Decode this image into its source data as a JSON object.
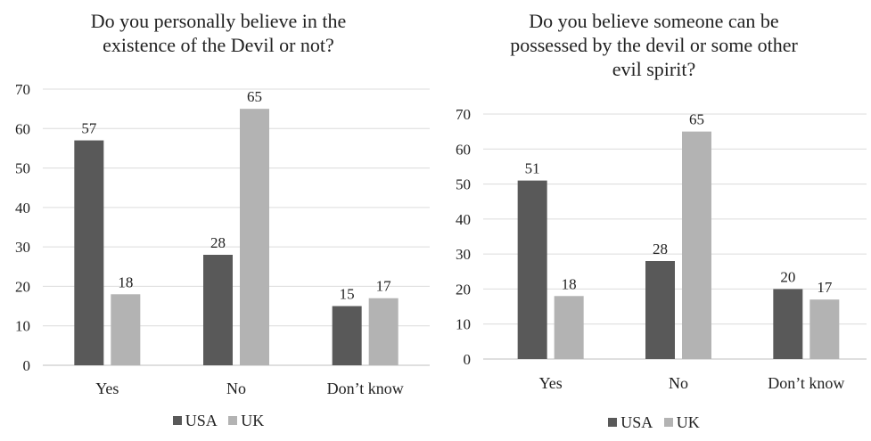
{
  "chart_data": [
    {
      "type": "bar",
      "title_lines": [
        "Do you personally believe in the",
        "existence of the Devil or not?"
      ],
      "categories": [
        "Yes",
        "No",
        "Don’t know"
      ],
      "series": [
        {
          "name": "USA",
          "values": [
            57,
            28,
            15
          ]
        },
        {
          "name": "UK",
          "values": [
            18,
            65,
            17
          ]
        }
      ],
      "yticks": [
        "0",
        "10",
        "20",
        "30",
        "40",
        "50",
        "60",
        "70"
      ],
      "ylim": [
        0,
        70
      ],
      "grid": true,
      "legend": "bottom",
      "colors": {
        "USA": "#595959",
        "UK": "#b3b3b3"
      }
    },
    {
      "type": "bar",
      "title_lines": [
        "Do you believe someone can be",
        "possessed by the devil or some other",
        "evil spirit?"
      ],
      "categories": [
        "Yes",
        "No",
        "Don’t know"
      ],
      "series": [
        {
          "name": "USA",
          "values": [
            51,
            28,
            20
          ]
        },
        {
          "name": "UK",
          "values": [
            18,
            65,
            17
          ]
        }
      ],
      "yticks": [
        "0",
        "10",
        "20",
        "30",
        "40",
        "50",
        "60",
        "70"
      ],
      "ylim": [
        0,
        70
      ],
      "grid": true,
      "legend": "bottom",
      "colors": {
        "USA": "#595959",
        "UK": "#b3b3b3"
      }
    }
  ]
}
